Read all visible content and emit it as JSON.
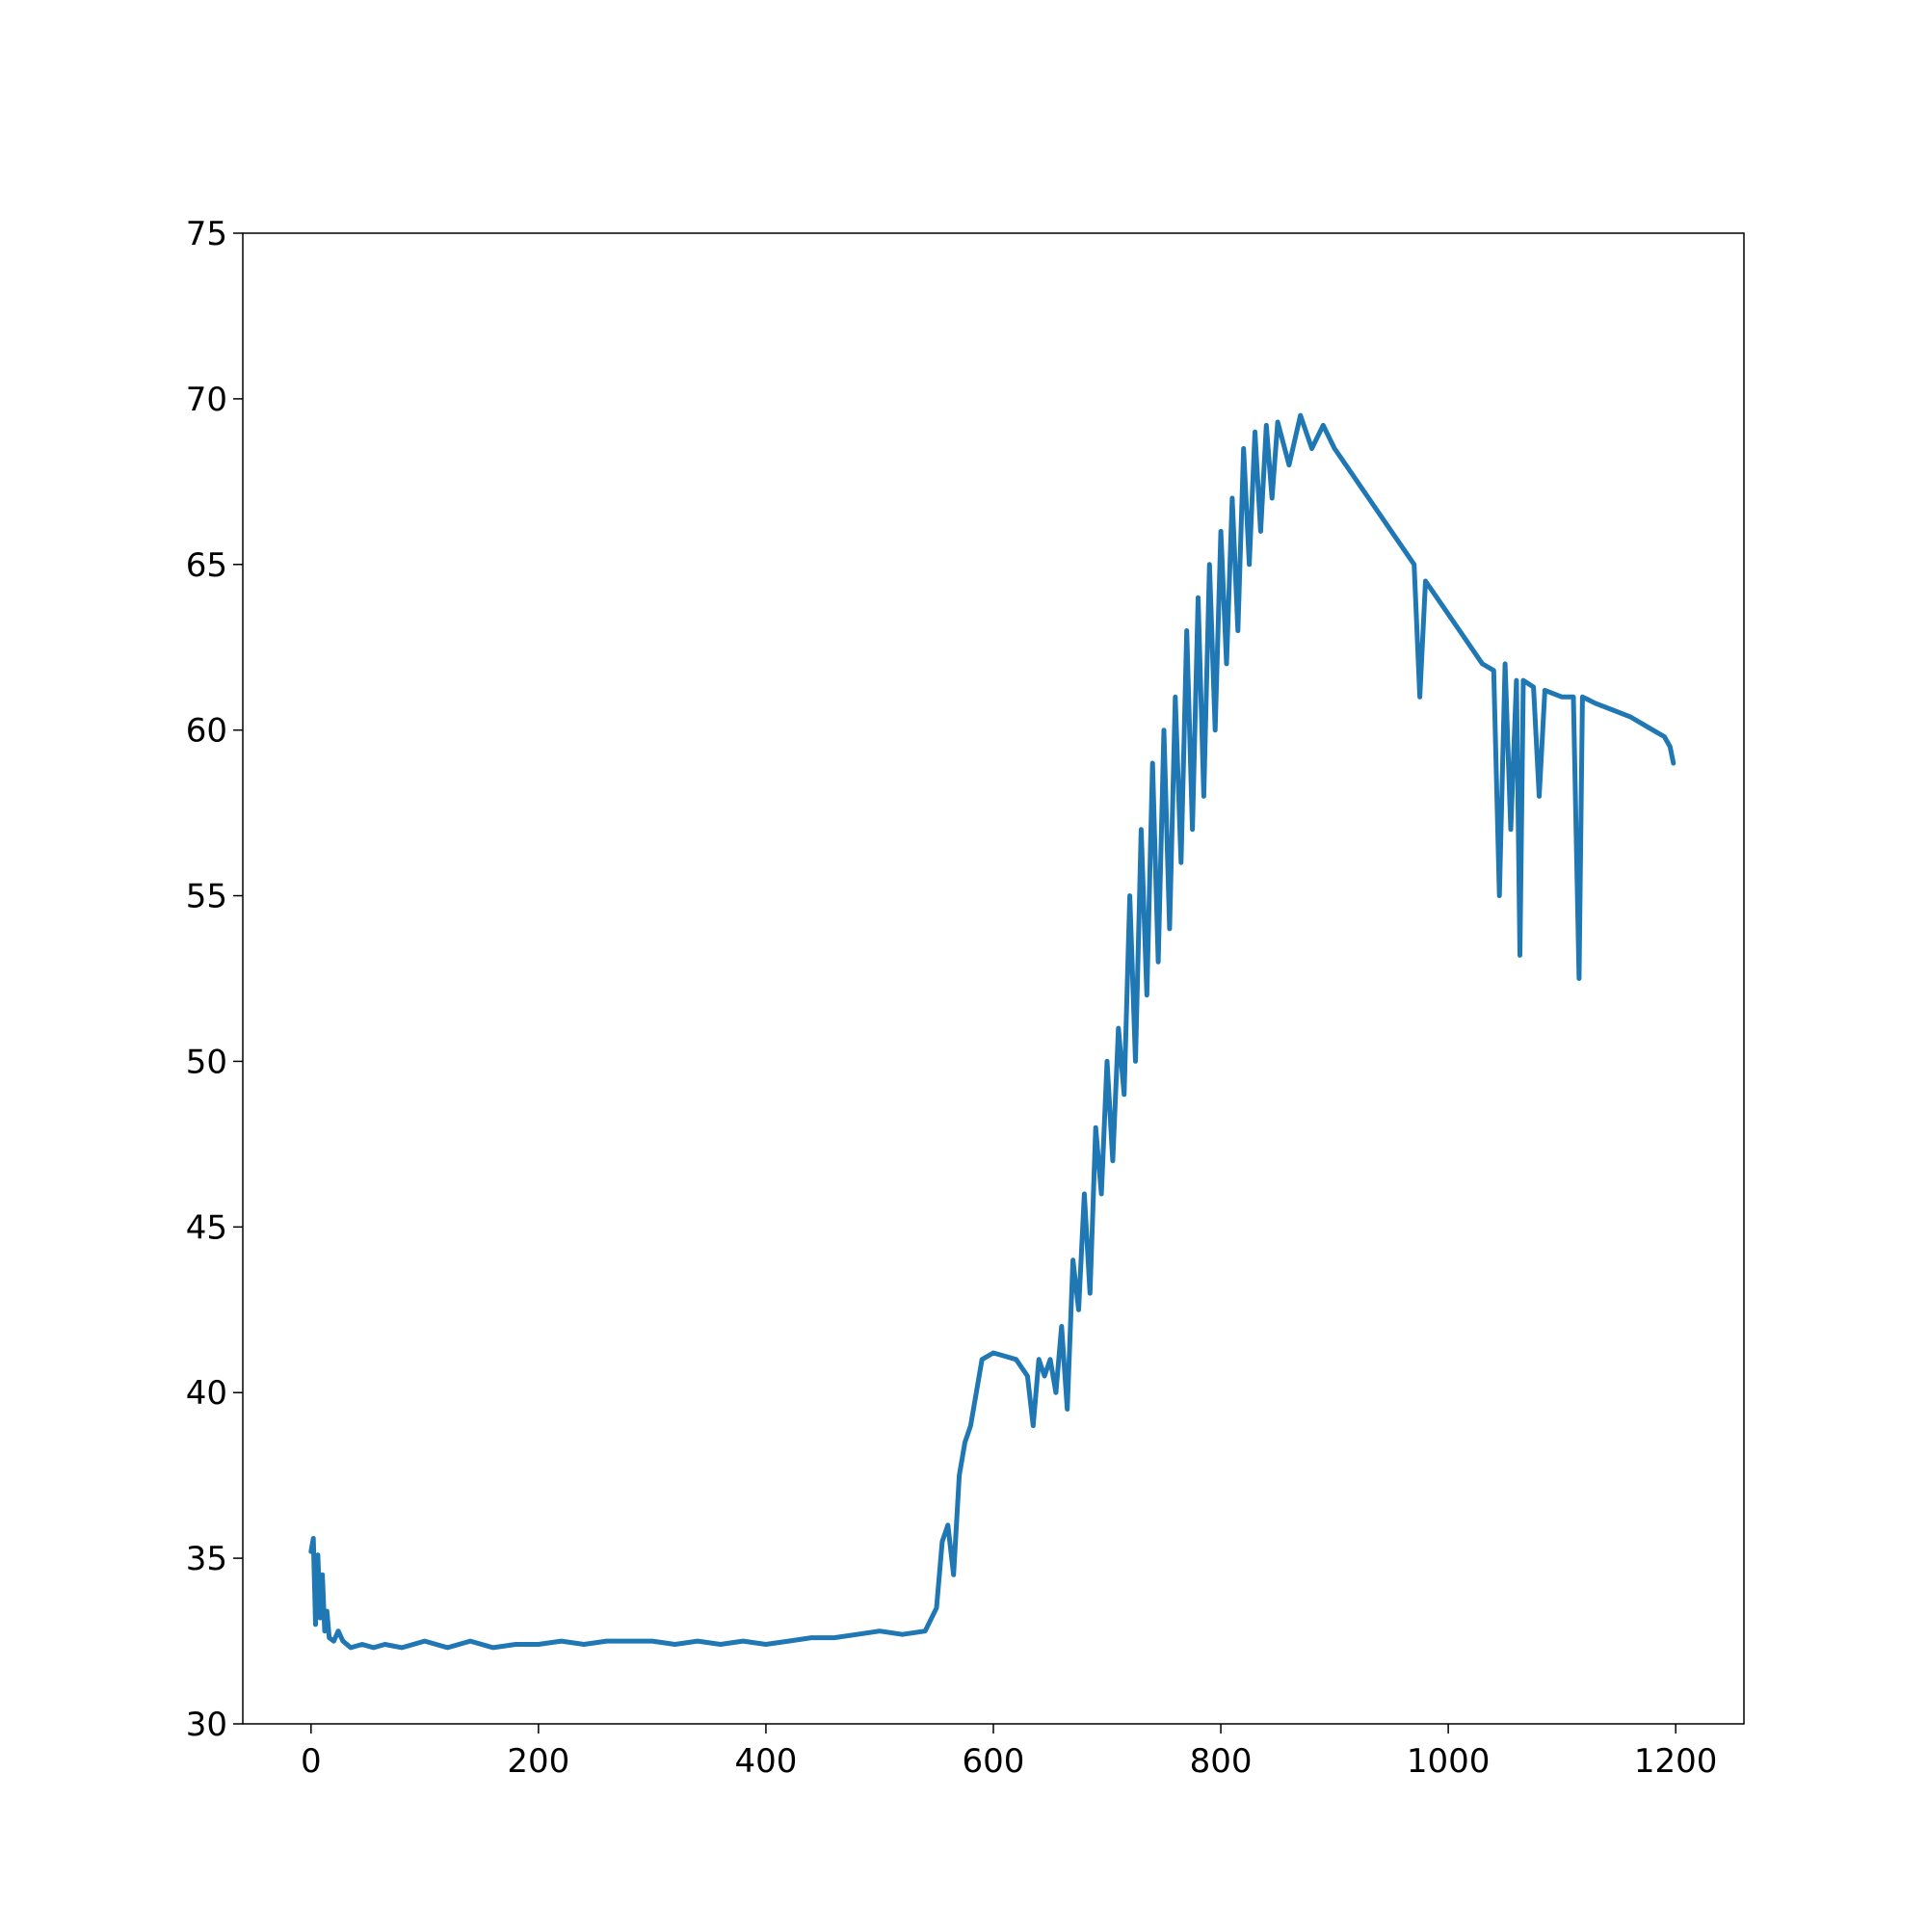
{
  "chart_data": {
    "type": "line",
    "title": "",
    "xlabel": "",
    "ylabel": "",
    "xlim": [
      -60,
      1260
    ],
    "ylim": [
      30,
      75
    ],
    "x_ticks": [
      0,
      200,
      400,
      600,
      800,
      1000,
      1200
    ],
    "y_ticks": [
      30,
      35,
      40,
      45,
      50,
      55,
      60,
      65,
      70,
      75
    ],
    "x_tick_labels": [
      "0",
      "200",
      "400",
      "600",
      "800",
      "1000",
      "1200"
    ],
    "y_tick_labels": [
      "30",
      "35",
      "40",
      "45",
      "50",
      "55",
      "60",
      "65",
      "70",
      "75"
    ],
    "grid": false,
    "legend": "none",
    "line_color": "#1f77b4",
    "series": [
      {
        "points": [
          [
            0,
            35.2
          ],
          [
            2,
            35.6
          ],
          [
            4,
            33.0
          ],
          [
            6,
            35.1
          ],
          [
            8,
            33.2
          ],
          [
            10,
            34.5
          ],
          [
            12,
            32.8
          ],
          [
            14,
            33.4
          ],
          [
            16,
            32.6
          ],
          [
            20,
            32.5
          ],
          [
            24,
            32.8
          ],
          [
            28,
            32.5
          ],
          [
            35,
            32.3
          ],
          [
            45,
            32.4
          ],
          [
            55,
            32.3
          ],
          [
            65,
            32.4
          ],
          [
            80,
            32.3
          ],
          [
            100,
            32.5
          ],
          [
            120,
            32.3
          ],
          [
            140,
            32.5
          ],
          [
            160,
            32.3
          ],
          [
            180,
            32.4
          ],
          [
            200,
            32.4
          ],
          [
            220,
            32.5
          ],
          [
            240,
            32.4
          ],
          [
            260,
            32.5
          ],
          [
            280,
            32.5
          ],
          [
            300,
            32.5
          ],
          [
            320,
            32.4
          ],
          [
            340,
            32.5
          ],
          [
            360,
            32.4
          ],
          [
            380,
            32.5
          ],
          [
            400,
            32.4
          ],
          [
            420,
            32.5
          ],
          [
            440,
            32.6
          ],
          [
            460,
            32.6
          ],
          [
            480,
            32.7
          ],
          [
            500,
            32.8
          ],
          [
            520,
            32.7
          ],
          [
            540,
            32.8
          ],
          [
            550,
            33.5
          ],
          [
            555,
            35.5
          ],
          [
            560,
            36.0
          ],
          [
            565,
            34.5
          ],
          [
            570,
            37.5
          ],
          [
            575,
            38.5
          ],
          [
            580,
            39.0
          ],
          [
            585,
            40.0
          ],
          [
            590,
            41.0
          ],
          [
            600,
            41.2
          ],
          [
            610,
            41.1
          ],
          [
            620,
            41.0
          ],
          [
            630,
            40.5
          ],
          [
            635,
            39.0
          ],
          [
            640,
            41.0
          ],
          [
            645,
            40.5
          ],
          [
            650,
            41.0
          ],
          [
            655,
            40.0
          ],
          [
            660,
            42.0
          ],
          [
            665,
            39.5
          ],
          [
            670,
            44.0
          ],
          [
            675,
            42.5
          ],
          [
            680,
            46.0
          ],
          [
            685,
            43.0
          ],
          [
            690,
            48.0
          ],
          [
            695,
            46.0
          ],
          [
            700,
            50.0
          ],
          [
            705,
            47.0
          ],
          [
            710,
            51.0
          ],
          [
            715,
            49.0
          ],
          [
            720,
            55.0
          ],
          [
            725,
            50.0
          ],
          [
            730,
            57.0
          ],
          [
            735,
            52.0
          ],
          [
            740,
            59.0
          ],
          [
            745,
            53.0
          ],
          [
            750,
            60.0
          ],
          [
            755,
            54.0
          ],
          [
            760,
            61.0
          ],
          [
            765,
            56.0
          ],
          [
            770,
            63.0
          ],
          [
            775,
            57.0
          ],
          [
            780,
            64.0
          ],
          [
            785,
            58.0
          ],
          [
            790,
            65.0
          ],
          [
            795,
            60.0
          ],
          [
            800,
            66.0
          ],
          [
            805,
            62.0
          ],
          [
            810,
            67.0
          ],
          [
            815,
            63.0
          ],
          [
            820,
            68.5
          ],
          [
            825,
            65.0
          ],
          [
            830,
            69.0
          ],
          [
            835,
            66.0
          ],
          [
            840,
            69.2
          ],
          [
            845,
            67.0
          ],
          [
            850,
            69.3
          ],
          [
            860,
            68.0
          ],
          [
            870,
            69.5
          ],
          [
            880,
            68.5
          ],
          [
            890,
            69.2
          ],
          [
            900,
            68.5
          ],
          [
            910,
            68.0
          ],
          [
            920,
            67.5
          ],
          [
            930,
            67.0
          ],
          [
            940,
            66.5
          ],
          [
            950,
            66.0
          ],
          [
            960,
            65.5
          ],
          [
            970,
            65.0
          ],
          [
            975,
            61.0
          ],
          [
            980,
            64.5
          ],
          [
            990,
            64.0
          ],
          [
            1000,
            63.5
          ],
          [
            1010,
            63.0
          ],
          [
            1020,
            62.5
          ],
          [
            1030,
            62.0
          ],
          [
            1040,
            61.8
          ],
          [
            1045,
            55.0
          ],
          [
            1050,
            62.0
          ],
          [
            1055,
            57.0
          ],
          [
            1060,
            61.5
          ],
          [
            1063,
            53.2
          ],
          [
            1066,
            61.5
          ],
          [
            1075,
            61.3
          ],
          [
            1080,
            58.0
          ],
          [
            1085,
            61.2
          ],
          [
            1100,
            61.0
          ],
          [
            1110,
            61.0
          ],
          [
            1115,
            52.5
          ],
          [
            1118,
            61.0
          ],
          [
            1130,
            60.8
          ],
          [
            1145,
            60.6
          ],
          [
            1160,
            60.4
          ],
          [
            1170,
            60.2
          ],
          [
            1180,
            60.0
          ],
          [
            1190,
            59.8
          ],
          [
            1195,
            59.5
          ],
          [
            1198,
            59.0
          ]
        ]
      }
    ]
  }
}
